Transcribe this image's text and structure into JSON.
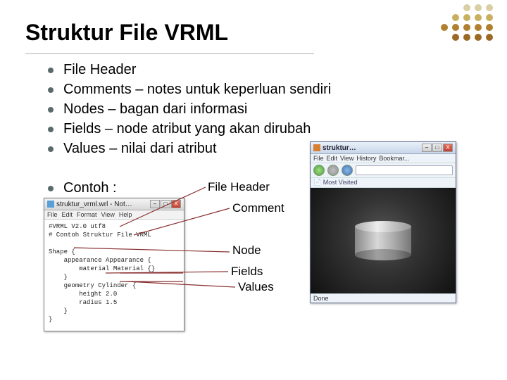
{
  "title": "Struktur File VRML",
  "bullets": [
    "File Header",
    "Comments – notes untuk keperluan sendiri",
    "Nodes – bagan dari informasi",
    "Fields – node atribut yang akan dirubah",
    "Values – nilai dari atribut"
  ],
  "contoh": "Contoh :",
  "notepad": {
    "title": "struktur_vrml.wrl - Not…",
    "menu": [
      "File",
      "Edit",
      "Format",
      "View",
      "Help"
    ],
    "code": "#VRML V2.0 utf8\n# Contoh Struktur File VRML\n\nShape {\n    appearance Appearance {\n        material Material {}\n    }\n    geometry Cylinder {\n        height 2.0\n        radius 1.5\n    }\n}",
    "btn_min": "–",
    "btn_max": "□",
    "btn_close": "X"
  },
  "browser": {
    "title": "struktur…",
    "menu": [
      "File",
      "Edit",
      "View",
      "History",
      "Bookmar..."
    ],
    "bookmark": "Most Visited",
    "status": "Done"
  },
  "annotations": {
    "file_header": "File Header",
    "comment": "Comment",
    "node": "Node",
    "fields": "Fields",
    "values": "Values"
  },
  "deco_colors": {
    "row1": [
      "#d9cfa3",
      "#d9cfa3",
      "#d9cfa3"
    ],
    "row2": [
      "#c9b060",
      "#c9b060",
      "#c9b060",
      "#c9b060"
    ],
    "row3": [
      "#b08030",
      "#b08030",
      "#b08030",
      "#b08030",
      "#b08030"
    ],
    "row4": [
      "#9a6a25",
      "#9a6a25",
      "#9a6a25",
      "#9a6a25"
    ]
  },
  "line_color": "#8a3030"
}
